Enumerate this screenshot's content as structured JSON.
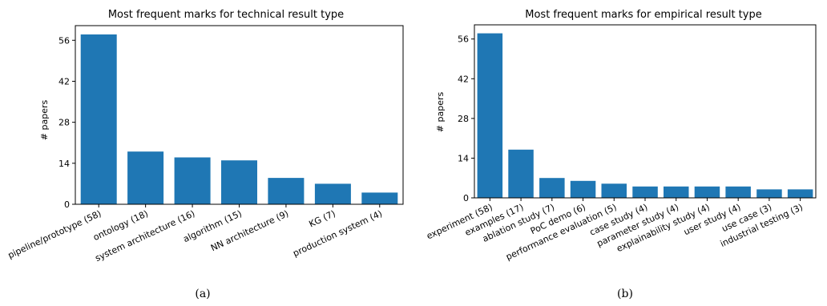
{
  "chart_data": [
    {
      "type": "bar",
      "title": "Most frequent marks for technical result type",
      "xlabel": "",
      "ylabel": "# papers",
      "yticks": [
        0,
        14,
        28,
        42,
        56
      ],
      "ylim": [
        0,
        61
      ],
      "categories": [
        "pipeline/prototype (58)",
        "ontology (18)",
        "system architecture (16)",
        "algorithm (15)",
        "NN architecture (9)",
        "KG (7)",
        "production system (4)"
      ],
      "values": [
        58,
        18,
        16,
        15,
        9,
        7,
        4
      ],
      "bar_color": "#1f77b4",
      "grid": false,
      "caption": "(a)"
    },
    {
      "type": "bar",
      "title": "Most frequent marks for empirical result type",
      "xlabel": "",
      "ylabel": "# papers",
      "yticks": [
        0,
        14,
        28,
        42,
        56
      ],
      "ylim": [
        0,
        61
      ],
      "categories": [
        "experiment (58)",
        "examples (17)",
        "ablation study (7)",
        "PoC demo (6)",
        "performance evaluation (5)",
        "case study (4)",
        "parameter study (4)",
        "explainability study (4)",
        "user study (4)",
        "use case (3)",
        "industrial testing (3)"
      ],
      "values": [
        58,
        17,
        7,
        6,
        5,
        4,
        4,
        4,
        4,
        3,
        3
      ],
      "bar_color": "#1f77b4",
      "grid": false,
      "caption": "(b)"
    }
  ]
}
